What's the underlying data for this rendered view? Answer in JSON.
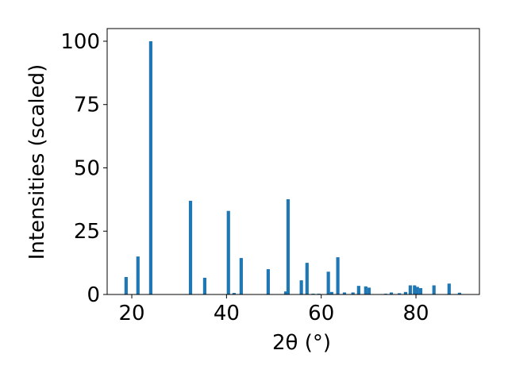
{
  "chart_data": {
    "type": "bar",
    "xlabel": "2θ (°)",
    "ylabel": "Intensities (scaled)",
    "x": [
      18.8,
      21.3,
      24.0,
      32.4,
      35.4,
      40.4,
      41.6,
      43.1,
      48.8,
      52.5,
      53.0,
      55.8,
      57.0,
      58.3,
      59.5,
      61.5,
      62.2,
      63.5,
      64.9,
      66.7,
      67.9,
      69.4,
      70.1,
      73.6,
      74.8,
      76.5,
      77.8,
      78.8,
      79.7,
      80.3,
      81.0,
      83.8,
      87.0,
      89.2
    ],
    "values": [
      6.9,
      15,
      100,
      37,
      6.6,
      33,
      0.6,
      14.4,
      10,
      1.2,
      37.6,
      5.6,
      12.5,
      0.3,
      0.3,
      9,
      1,
      14.7,
      0.8,
      0.8,
      3.4,
      3.2,
      2.7,
      0.3,
      0.8,
      0.5,
      1,
      3.6,
      3.6,
      3,
      2.5,
      3.6,
      4.3,
      0.7
    ],
    "color": "#1f77b4",
    "xlim": [
      14.8,
      93.4
    ],
    "xticks": [
      20,
      40,
      60,
      80
    ],
    "ylim": [
      0,
      105
    ],
    "yticks": [
      0,
      25,
      50,
      75,
      100
    ]
  }
}
